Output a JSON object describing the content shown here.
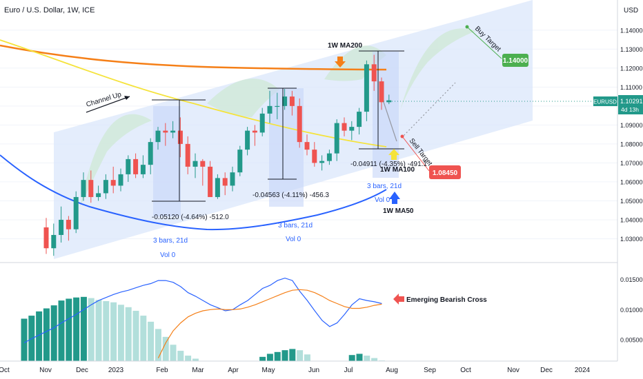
{
  "header": {
    "title": "Euro / U.S. Dollar, 1W, ICE"
  },
  "currency_label": "USD",
  "colors": {
    "up": "#22998a",
    "down": "#ef5350",
    "ma50": "#2962ff",
    "ma100": "#f5e33b",
    "ma200": "#f57f17",
    "channel": "#dbe7fb",
    "measure": "#c7d6f8"
  },
  "price_tag": {
    "symbol": "EURUSD",
    "price": "1.10291",
    "time_left": "4d 13h"
  },
  "targets": {
    "buy_label": "Buy Target",
    "buy_price": "1.14000",
    "sell_label": "Sell Target",
    "sell_price": "1.08450"
  },
  "annotations": {
    "channel": "Channel Up",
    "ma200": "1W MA200",
    "ma100": "1W MA100",
    "ma50": "1W MA50",
    "cross": "Emerging Bearish Cross",
    "m1_stat": "-0.05120 (-4.64%) -512.0",
    "m2_stat": "-0.04563 (-4.11%) -456.3",
    "m3_stat": "-0.04911 (-4.35%) -491.1",
    "bars": "3 bars, 21d",
    "vol": "Vol 0"
  },
  "chart_data": {
    "type": "candlestick",
    "title": "Euro / U.S. Dollar, 1W, ICE",
    "price_range": [
      1.02,
      1.145
    ],
    "y_ticks": [
      1.03,
      1.04,
      1.05,
      1.06,
      1.07,
      1.08,
      1.09,
      1.1,
      1.11,
      1.12,
      1.13,
      1.14
    ],
    "y_tick_labels": [
      "1.03000",
      "1.04000",
      "1.05000",
      "1.06000",
      "1.07000",
      "1.08000",
      "1.09000",
      "1.10000",
      "1.11000",
      "1.12000",
      "1.13000",
      "1.14000"
    ],
    "x_ticks": [
      "Oct",
      "Nov",
      "Dec",
      "2023",
      "Feb",
      "Mar",
      "Apr",
      "May",
      "Jun",
      "Jul",
      "Aug",
      "Sep",
      "Oct",
      "Nov",
      "Dec",
      "2024"
    ],
    "candles": [
      [
        1.036,
        1.025,
        1.041,
        1.022
      ],
      [
        1.025,
        1.032,
        1.038,
        1.021
      ],
      [
        1.032,
        1.04,
        1.047,
        1.028
      ],
      [
        1.04,
        1.035,
        1.042,
        1.029
      ],
      [
        1.035,
        1.052,
        1.055,
        1.033
      ],
      [
        1.052,
        1.061,
        1.065,
        1.05
      ],
      [
        1.061,
        1.052,
        1.066,
        1.049
      ],
      [
        1.052,
        1.054,
        1.058,
        1.05
      ],
      [
        1.054,
        1.061,
        1.064,
        1.051
      ],
      [
        1.061,
        1.058,
        1.068,
        1.054
      ],
      [
        1.058,
        1.064,
        1.067,
        1.055
      ],
      [
        1.064,
        1.072,
        1.074,
        1.06
      ],
      [
        1.072,
        1.064,
        1.075,
        1.062
      ],
      [
        1.064,
        1.069,
        1.074,
        1.062
      ],
      [
        1.069,
        1.081,
        1.083,
        1.064
      ],
      [
        1.081,
        1.087,
        1.089,
        1.077
      ],
      [
        1.087,
        1.086,
        1.091,
        1.079
      ],
      [
        1.086,
        1.087,
        1.092,
        1.083
      ],
      [
        1.087,
        1.08,
        1.094,
        1.073
      ],
      [
        1.08,
        1.068,
        1.084,
        1.064
      ],
      [
        1.068,
        1.071,
        1.075,
        1.062
      ],
      [
        1.071,
        1.068,
        1.072,
        1.058
      ],
      [
        1.068,
        1.052,
        1.071,
        1.052
      ],
      [
        1.052,
        1.062,
        1.064,
        1.051
      ],
      [
        1.062,
        1.058,
        1.065,
        1.053
      ],
      [
        1.058,
        1.065,
        1.068,
        1.055
      ],
      [
        1.065,
        1.077,
        1.079,
        1.063
      ],
      [
        1.077,
        1.087,
        1.089,
        1.074
      ],
      [
        1.087,
        1.086,
        1.09,
        1.079
      ],
      [
        1.086,
        1.096,
        1.099,
        1.084
      ],
      [
        1.096,
        1.1,
        1.108,
        1.091
      ],
      [
        1.1,
        1.1,
        1.107,
        1.093
      ],
      [
        1.1,
        1.105,
        1.109,
        1.098
      ],
      [
        1.105,
        1.1,
        1.108,
        1.095
      ],
      [
        1.1,
        1.081,
        1.104,
        1.078
      ],
      [
        1.081,
        1.077,
        1.085,
        1.074
      ],
      [
        1.077,
        1.07,
        1.081,
        1.068
      ],
      [
        1.07,
        1.071,
        1.074,
        1.066
      ],
      [
        1.071,
        1.075,
        1.077,
        1.069
      ],
      [
        1.075,
        1.091,
        1.093,
        1.071
      ],
      [
        1.091,
        1.087,
        1.094,
        1.084
      ],
      [
        1.087,
        1.089,
        1.092,
        1.082
      ],
      [
        1.089,
        1.097,
        1.099,
        1.085
      ],
      [
        1.097,
        1.122,
        1.124,
        1.092
      ],
      [
        1.122,
        1.113,
        1.127,
        1.108
      ],
      [
        1.113,
        1.102,
        1.115,
        1.098
      ],
      [
        1.102,
        1.103,
        1.106,
        1.101
      ]
    ],
    "rsi_range": [
      0.0015,
      0.0172
    ],
    "rsi_ticks": [
      "0.01500",
      "0.01000",
      "0.00500"
    ],
    "histogram": [
      0.0085,
      0.009,
      0.0097,
      0.0102,
      0.0107,
      0.0115,
      0.0118,
      0.012,
      0.0121,
      0.0119,
      0.0116,
      0.0114,
      0.0112,
      0.0108,
      0.0104,
      0.0098,
      0.009,
      0.008,
      0.0068,
      0.0055,
      0.0042,
      0.0032,
      0.0024,
      0.0019,
      0.0,
      0.0,
      0.0,
      0.0,
      0.0,
      0.0,
      0.0,
      0.0,
      0.0022,
      0.0027,
      0.003,
      0.0033,
      0.0035,
      0.0033,
      0.0026,
      0.0,
      0.0,
      0.0,
      0.0,
      0.0,
      0.0025,
      0.0027,
      0.0024,
      0.002,
      0.0016
    ],
    "macd_series": [
      0.0045,
      0.0052,
      0.0058,
      0.0064,
      0.007,
      0.0078,
      0.0085,
      0.0092,
      0.01,
      0.0108,
      0.0115,
      0.012,
      0.0125,
      0.0129,
      0.0132,
      0.0136,
      0.014,
      0.0143,
      0.0148,
      0.0148,
      0.0145,
      0.0138,
      0.0128,
      0.0122,
      0.0115,
      0.0108,
      0.0103,
      0.0098,
      0.01,
      0.0108,
      0.0115,
      0.0125,
      0.0135,
      0.014,
      0.0148,
      0.0152,
      0.0148,
      0.013,
      0.0115,
      0.0098,
      0.0082,
      0.0072,
      0.0078,
      0.0092,
      0.0108,
      0.0118,
      0.0115,
      0.0113,
      0.011
    ],
    "signal_series": [
      null,
      null,
      null,
      null,
      null,
      null,
      null,
      null,
      null,
      null,
      null,
      null,
      null,
      null,
      null,
      null,
      null,
      null,
      0.002,
      0.0045,
      0.0065,
      0.0078,
      0.0088,
      0.0094,
      0.0098,
      0.01,
      0.0101,
      0.01,
      0.01,
      0.0101,
      0.0104,
      0.0108,
      0.0113,
      0.0118,
      0.0123,
      0.0128,
      0.0132,
      0.0133,
      0.0132,
      0.0128,
      0.0122,
      0.0115,
      0.011,
      0.0105,
      0.0102,
      0.0102,
      0.0104,
      0.0107,
      0.0109
    ]
  }
}
